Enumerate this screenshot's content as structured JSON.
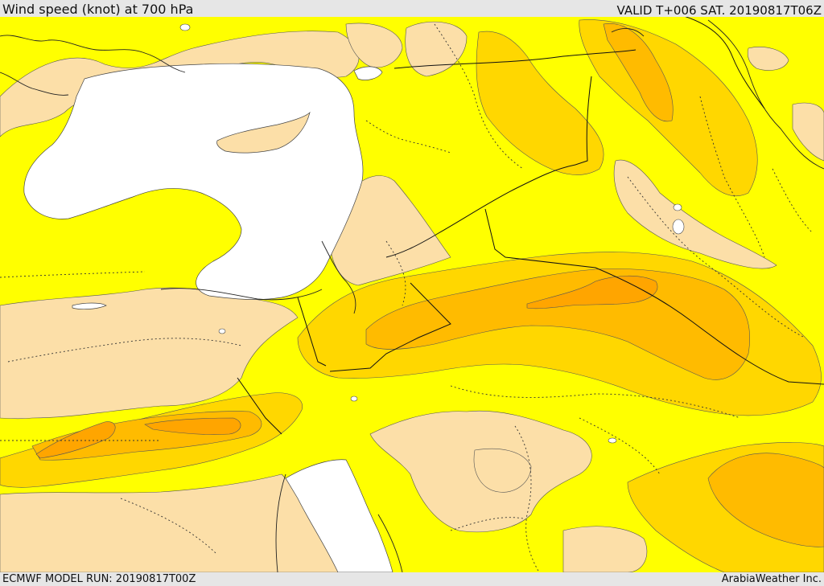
{
  "header": {
    "title": "Wind speed (knot) at 700 hPa",
    "valid": "VALID T+006 SAT. 20190817T06Z"
  },
  "footer": {
    "model_run": "ECMWF MODEL RUN: 20190817T00Z",
    "credit": "ArabiaWeather Inc."
  },
  "colors": {
    "calm": "#fcdfa8",
    "low": "#ffff00",
    "moderate": "#ffd700",
    "fresh": "#ffbb00",
    "strong": "#ffa500",
    "sea": "#ffffff",
    "header_bg": "#e6e6e6"
  }
}
